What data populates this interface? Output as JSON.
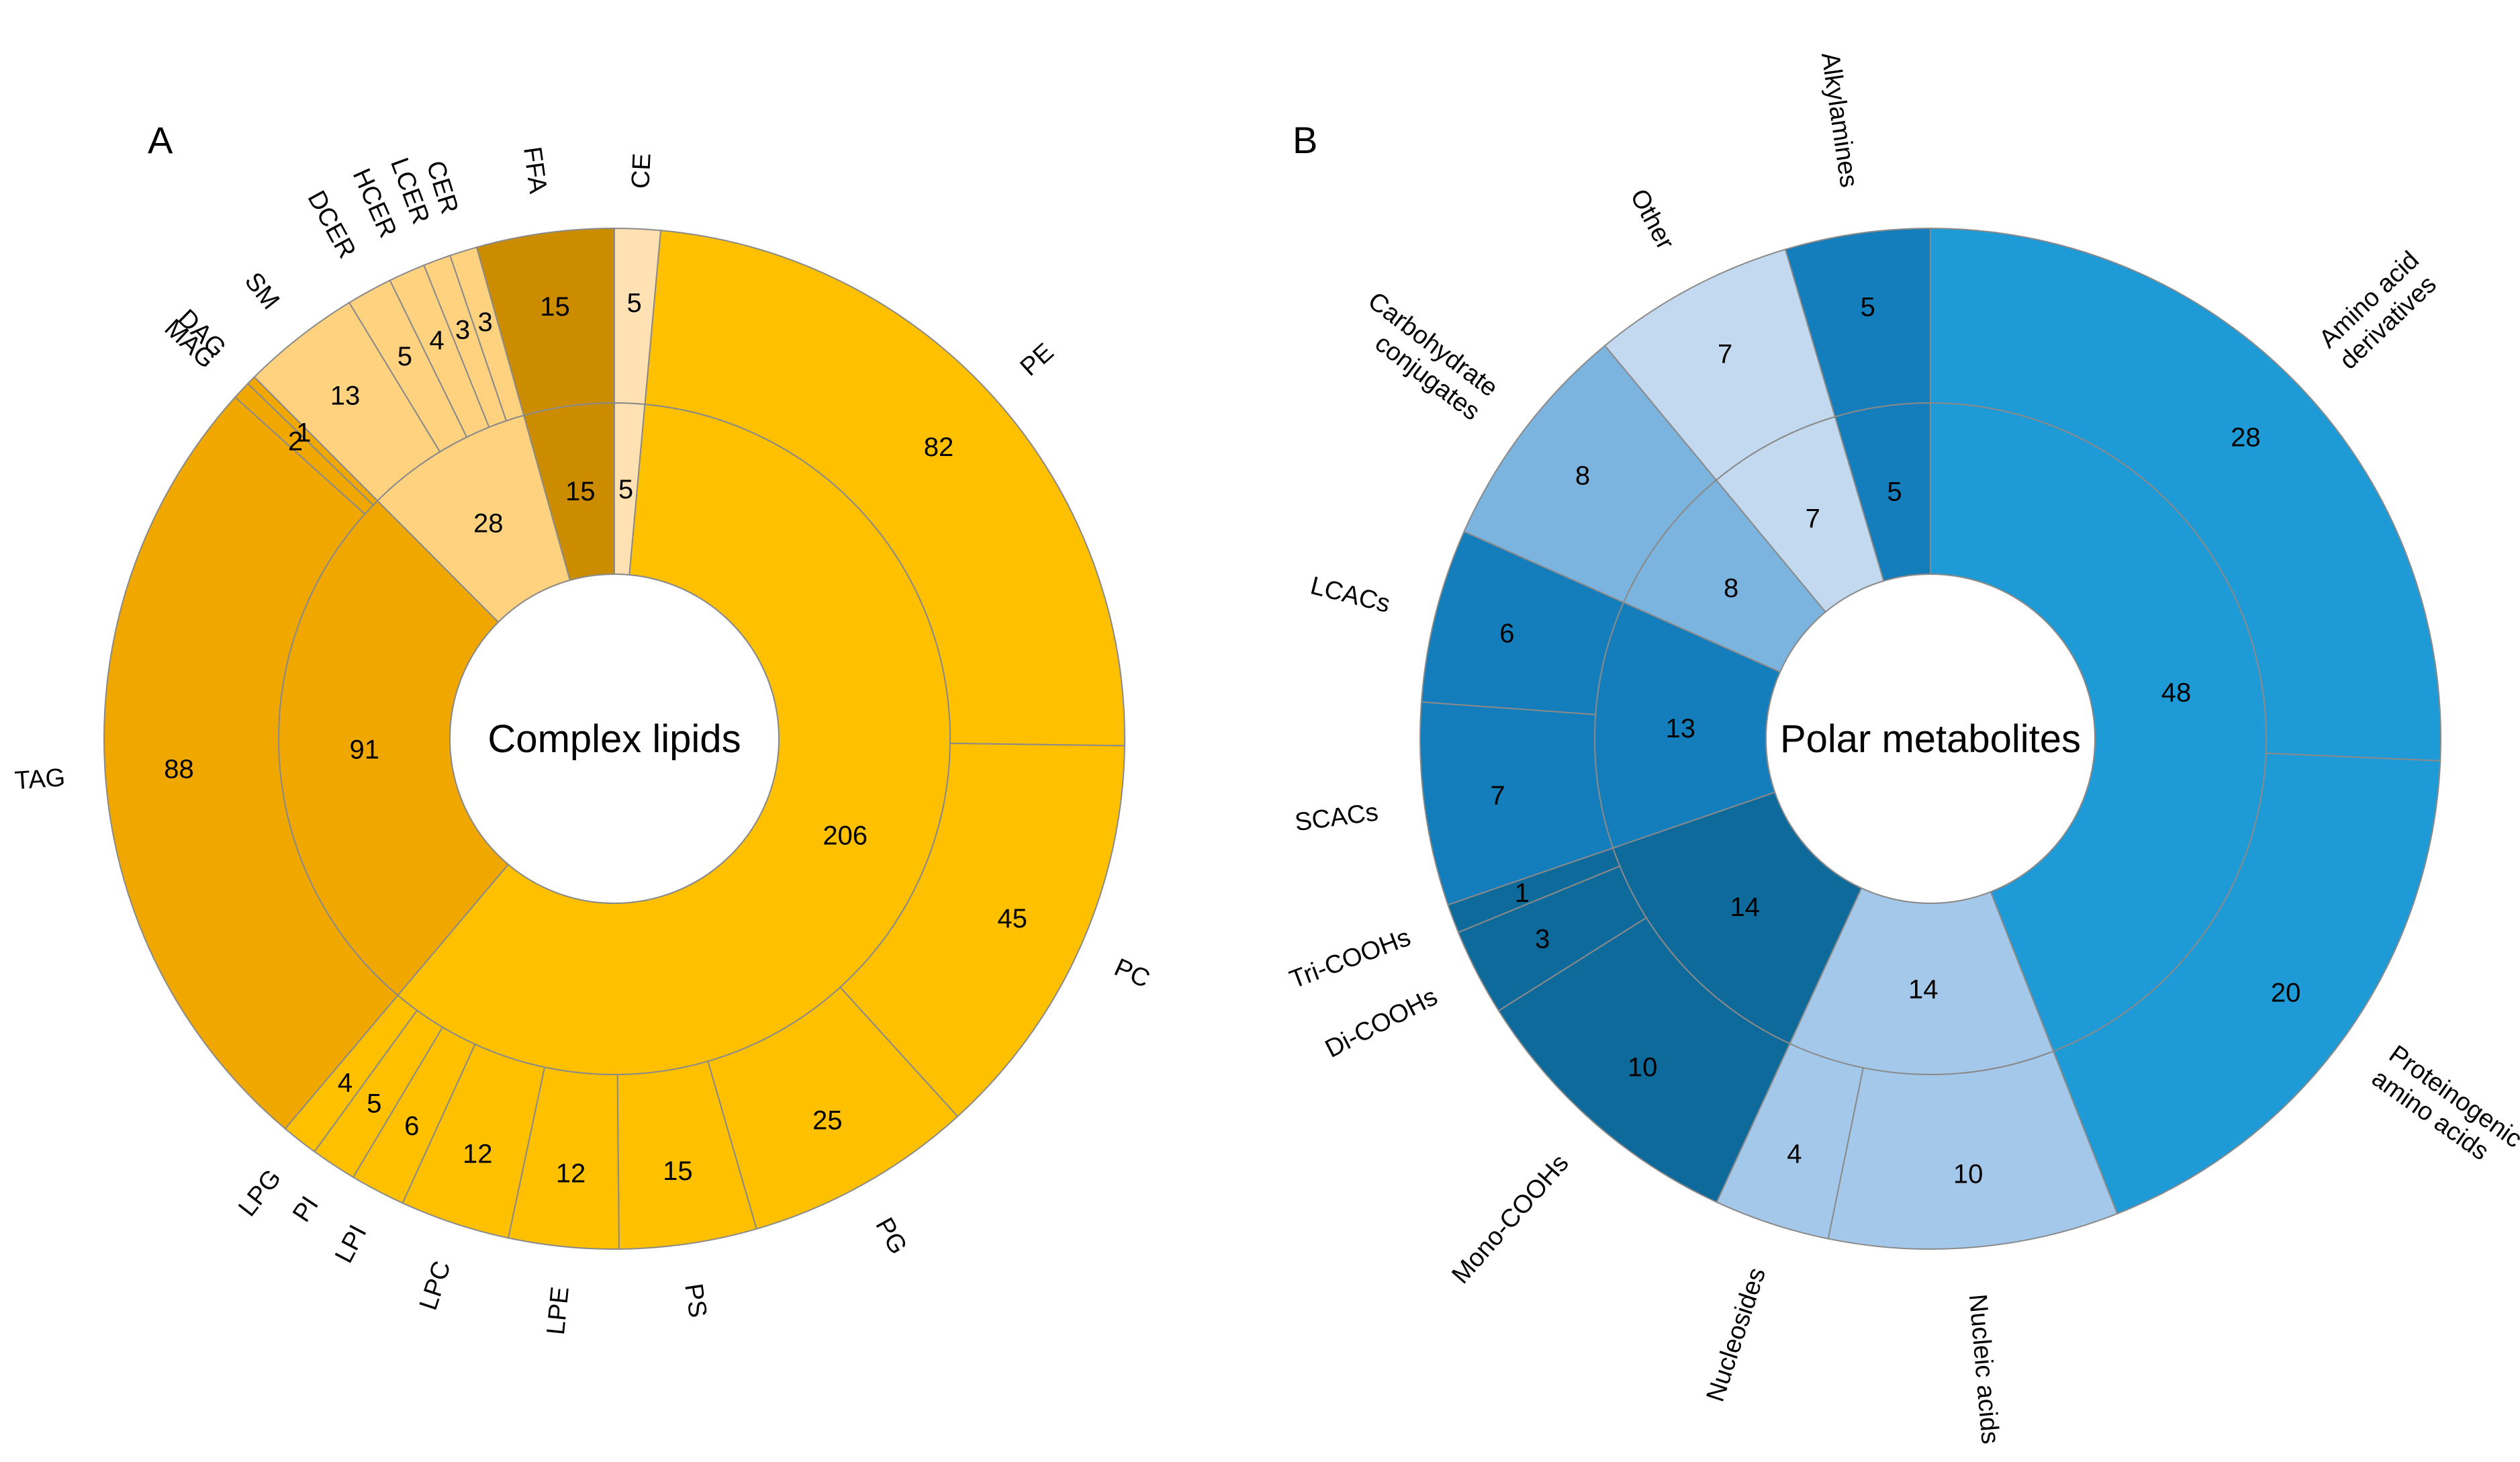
{
  "chart_data": [
    {
      "type": "sunburst",
      "panel": "A",
      "title": "Complex lipids",
      "colors": {
        "stroke": "#8a8a8a",
        "gold": "#ffc000",
        "orange": "#f0a800",
        "brown": "#cc8c00",
        "light": "#ffd280",
        "pale": "#ffe1b4"
      },
      "inner": [
        {
          "value": 5,
          "label": "5",
          "color": "pale"
        },
        {
          "value": 206,
          "label": "206",
          "color": "gold"
        },
        {
          "value": 91,
          "label": "91",
          "color": "orange"
        },
        {
          "value": 28,
          "label": "28",
          "color": "light"
        },
        {
          "value": 15,
          "label": "15",
          "color": "brown"
        }
      ],
      "outer": [
        {
          "name": "CE",
          "value": 5,
          "label": "5",
          "color": "pale"
        },
        {
          "name": "PE",
          "value": 82,
          "label": "82",
          "color": "gold"
        },
        {
          "name": "PC",
          "value": 45,
          "label": "45",
          "color": "gold"
        },
        {
          "name": "PG",
          "value": 25,
          "label": "25",
          "color": "gold"
        },
        {
          "name": "PS",
          "value": 15,
          "label": "15",
          "color": "gold"
        },
        {
          "name": "LPE",
          "value": 12,
          "label": "12",
          "color": "gold"
        },
        {
          "name": "LPC",
          "value": 12,
          "label": "12",
          "color": "gold"
        },
        {
          "name": "LPI",
          "value": 6,
          "label": "6",
          "color": "gold"
        },
        {
          "name": "PI",
          "value": 5,
          "label": "5",
          "color": "gold"
        },
        {
          "name": "LPG",
          "value": 4,
          "label": "4",
          "color": "gold"
        },
        {
          "name": "TAG",
          "value": 88,
          "label": "88",
          "color": "orange"
        },
        {
          "name": "MAG",
          "value": 2,
          "label": "2",
          "color": "orange"
        },
        {
          "name": "DAG",
          "value": 1,
          "label": "1",
          "color": "orange"
        },
        {
          "name": "SM",
          "value": 13,
          "label": "13",
          "color": "light"
        },
        {
          "name": "DCER",
          "value": 5,
          "label": "5",
          "color": "light"
        },
        {
          "name": "HCER",
          "value": 4,
          "label": "4",
          "color": "light"
        },
        {
          "name": "LCER",
          "value": 3,
          "label": "3",
          "color": "light"
        },
        {
          "name": "CER",
          "value": 3,
          "label": "3",
          "color": "light"
        },
        {
          "name": "FFA",
          "value": 15,
          "label": "15",
          "color": "brown"
        }
      ]
    },
    {
      "type": "sunburst",
      "panel": "B",
      "title": "Polar metabolites",
      "colors": {
        "stroke": "#8a8a8a",
        "bright": "#1e9ad6",
        "mid": "#147dbb",
        "dark": "#0e6a9a",
        "soft": "#7cb4e0",
        "lighter": "#a4c8ea",
        "lightest": "#c3d9ef"
      },
      "inner": [
        {
          "value": 48,
          "label": "48",
          "color": "bright"
        },
        {
          "value": 14,
          "label": "14",
          "color": "lighter"
        },
        {
          "value": 14,
          "label": "14",
          "color": "dark"
        },
        {
          "value": 13,
          "label": "13",
          "color": "mid"
        },
        {
          "value": 8,
          "label": "8",
          "color": "soft"
        },
        {
          "value": 7,
          "label": "7",
          "color": "lightest"
        },
        {
          "value": 5,
          "label": "5",
          "color": "mid"
        }
      ],
      "outer": [
        {
          "name": "Amino acid derivatives",
          "lines": [
            "Amino acid",
            "derivatives"
          ],
          "value": 28,
          "label": "28",
          "color": "bright"
        },
        {
          "name": "Proteinogenic amino acids",
          "lines": [
            "Proteinogenic",
            "amino acids"
          ],
          "value": 20,
          "label": "20",
          "color": "bright"
        },
        {
          "name": "Nucleic acids",
          "lines": [
            "Nucleic acids"
          ],
          "value": 10,
          "label": "10",
          "color": "lighter"
        },
        {
          "name": "Nucleosides",
          "lines": [
            "Nucleosides"
          ],
          "value": 4,
          "label": "4",
          "color": "lighter"
        },
        {
          "name": "Mono-COOHs",
          "lines": [
            "Mono-COOHs"
          ],
          "value": 10,
          "label": "10",
          "color": "dark"
        },
        {
          "name": "Di-COOHs",
          "lines": [
            "Di-COOHs"
          ],
          "value": 3,
          "label": "3",
          "color": "dark"
        },
        {
          "name": "Tri-COOHs",
          "lines": [
            "Tri-COOHs"
          ],
          "value": 1,
          "label": "1",
          "color": "dark"
        },
        {
          "name": "SCACs",
          "lines": [
            "SCACs"
          ],
          "value": 7,
          "label": "7",
          "color": "mid"
        },
        {
          "name": "LCACs",
          "lines": [
            "LCACs"
          ],
          "value": 6,
          "label": "6",
          "color": "mid"
        },
        {
          "name": "Carbohydrate conjugates",
          "lines": [
            "Carbohydrate",
            "conjugates"
          ],
          "value": 8,
          "label": "8",
          "color": "soft"
        },
        {
          "name": "Other",
          "lines": [
            "Other"
          ],
          "value": 7,
          "label": "7",
          "color": "lightest"
        },
        {
          "name": "Alkylamines",
          "lines": [
            "Alkylamines"
          ],
          "value": 5,
          "label": "5",
          "color": "mid"
        }
      ]
    }
  ]
}
